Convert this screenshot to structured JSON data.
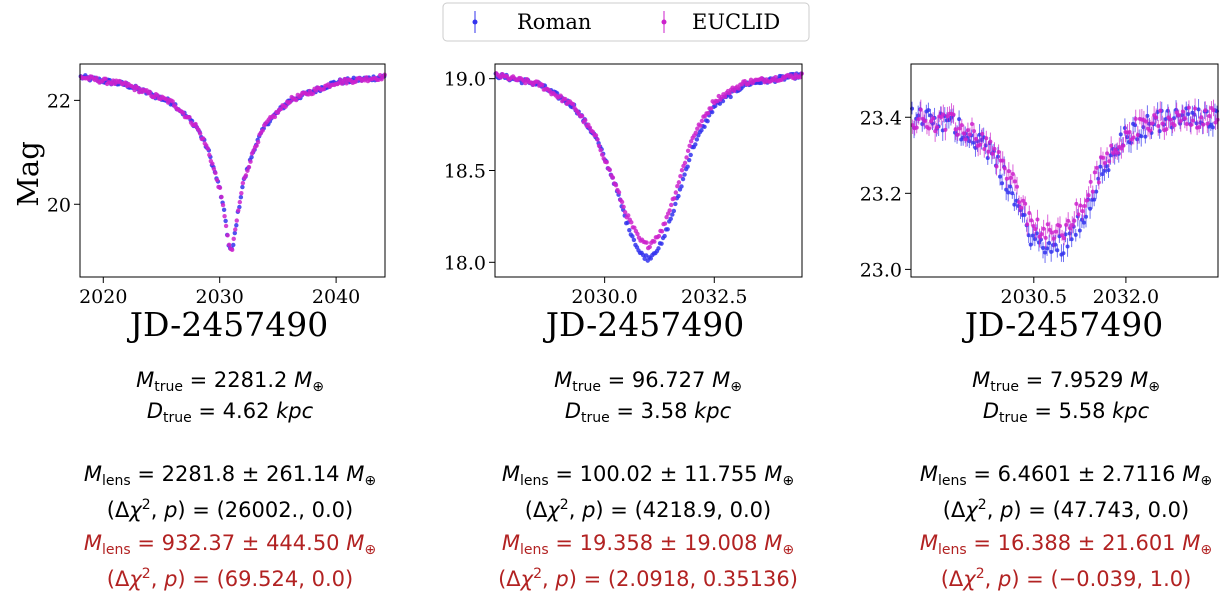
{
  "figure": {
    "ylabel": "Mag",
    "legend": {
      "entries": [
        {
          "name": "Roman",
          "color": "#3333ee"
        },
        {
          "name": "EUCLID",
          "color": "#cc22cc"
        }
      ]
    },
    "panels": [
      {
        "xlabel": "JD-2457490",
        "m_true_val": "2281.2",
        "d_true_val": "4.62",
        "m_lens_1": "2281.8 ± 261.14",
        "chi_1": "(26002., 0.0)",
        "m_lens_2": "932.37 ± 444.50",
        "chi_2": "(69.524, 0.0)"
      },
      {
        "xlabel": "JD-2457490",
        "m_true_val": "96.727",
        "d_true_val": "3.58",
        "m_lens_1": "100.02 ± 11.755",
        "chi_1": "(4218.9, 0.0)",
        "m_lens_2": "19.358 ± 19.008",
        "chi_2": "(2.0918, 0.35136)"
      },
      {
        "xlabel": "JD-2457490",
        "m_true_val": "7.9529",
        "d_true_val": "5.58",
        "m_lens_1": "6.4601 ± 2.7116",
        "chi_1": "(47.743, 0.0)",
        "m_lens_2": "16.388 ± 21.601",
        "chi_2": "(−0.039, 1.0)"
      }
    ]
  },
  "chart_data": [
    {
      "type": "scatter",
      "xlabel": "JD-2457490",
      "ylabel": "Mag",
      "xlim": [
        2018,
        2044.2
      ],
      "ylim": [
        22.7,
        18.6
      ],
      "y_inverted": true,
      "xticks": [
        2020,
        2030,
        2040
      ],
      "yticks": [
        20,
        22
      ],
      "x": [
        2018,
        2022,
        2026,
        2028,
        2029,
        2030,
        2030.5,
        2030.8,
        2031.1,
        2031.4,
        2032,
        2033,
        2034,
        2036,
        2040,
        2044
      ],
      "series": [
        {
          "name": "Roman",
          "values": [
            22.45,
            22.3,
            21.95,
            21.5,
            21.05,
            20.3,
            19.7,
            19.15,
            19.1,
            19.6,
            20.4,
            21.1,
            21.55,
            22.0,
            22.35,
            22.45
          ]
        },
        {
          "name": "EUCLID",
          "values": [
            22.45,
            22.3,
            21.95,
            21.5,
            21.05,
            20.3,
            19.7,
            19.18,
            19.12,
            19.6,
            20.4,
            21.1,
            21.55,
            22.0,
            22.35,
            22.45
          ]
        }
      ]
    },
    {
      "type": "scatter",
      "xlabel": "JD-2457490",
      "ylabel": "",
      "xlim": [
        2027.5,
        2034.5
      ],
      "ylim": [
        19.08,
        17.92
      ],
      "y_inverted": true,
      "xticks": [
        2030.0,
        2032.5
      ],
      "yticks": [
        18.0,
        18.5,
        19.0
      ],
      "x": [
        2027.5,
        2028.5,
        2029.3,
        2029.8,
        2030.2,
        2030.5,
        2030.8,
        2031.0,
        2031.3,
        2031.6,
        2032.0,
        2032.5,
        2033.2,
        2034.5
      ],
      "series": [
        {
          "name": "Roman",
          "values": [
            19.02,
            18.97,
            18.85,
            18.68,
            18.45,
            18.22,
            18.05,
            18.02,
            18.1,
            18.3,
            18.62,
            18.85,
            18.97,
            19.02
          ]
        },
        {
          "name": "EUCLID",
          "values": [
            19.02,
            18.97,
            18.85,
            18.68,
            18.45,
            18.26,
            18.12,
            18.09,
            18.17,
            18.37,
            18.68,
            18.88,
            18.98,
            19.02
          ]
        }
      ]
    },
    {
      "type": "scatter",
      "xlabel": "JD-2457490",
      "ylabel": "",
      "xlim": [
        2028.5,
        2033.5
      ],
      "ylim": [
        23.54,
        22.98
      ],
      "y_inverted": true,
      "xticks": [
        2030.5,
        2032.0
      ],
      "yticks": [
        23.0,
        23.2,
        23.4
      ],
      "x": [
        2028.5,
        2029.2,
        2029.7,
        2030.1,
        2030.4,
        2030.7,
        2031.0,
        2031.3,
        2031.6,
        2032.0,
        2032.5,
        2033.0,
        2033.5
      ],
      "series": [
        {
          "name": "Roman",
          "values": [
            23.4,
            23.38,
            23.33,
            23.22,
            23.1,
            23.05,
            23.07,
            23.14,
            23.25,
            23.35,
            23.39,
            23.4,
            23.4
          ]
        },
        {
          "name": "EUCLID",
          "values": [
            23.4,
            23.38,
            23.34,
            23.25,
            23.14,
            23.09,
            23.1,
            23.17,
            23.27,
            23.36,
            23.39,
            23.4,
            23.4
          ]
        }
      ]
    }
  ]
}
